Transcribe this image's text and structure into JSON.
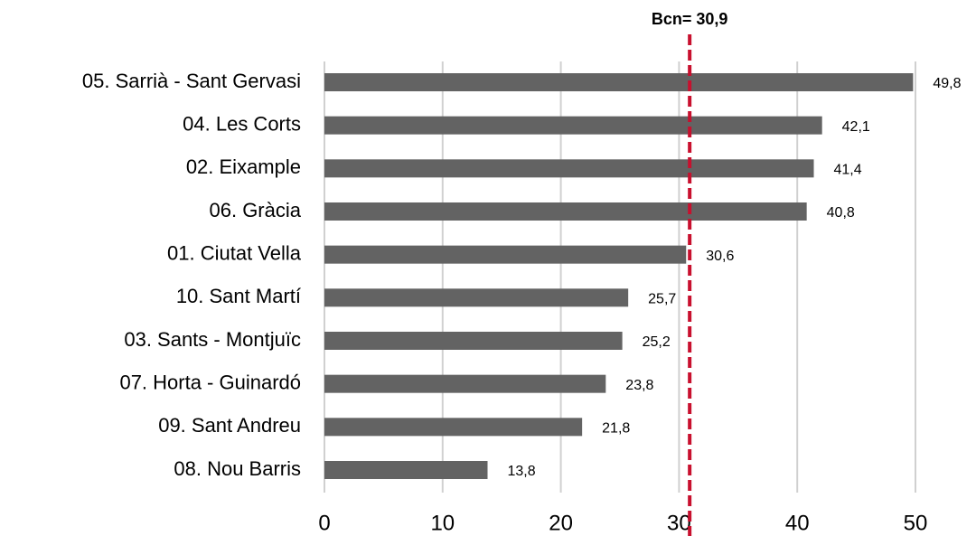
{
  "chart_data": {
    "type": "bar",
    "orientation": "horizontal",
    "categories": [
      "05. Sarrià - Sant Gervasi",
      "04. Les Corts",
      "02. Eixample",
      "06. Gràcia",
      "01. Ciutat Vella",
      "10. Sant Martí",
      "03. Sants - Montjuïc",
      "07. Horta - Guinardó",
      "09. Sant Andreu",
      "08. Nou Barris"
    ],
    "values": [
      49.8,
      42.1,
      41.4,
      40.8,
      30.6,
      25.7,
      25.2,
      23.8,
      21.8,
      13.8
    ],
    "value_labels": [
      "49,8",
      "42,1",
      "41,4",
      "40,8",
      "30,6",
      "25,7",
      "25,2",
      "23,8",
      "21,8",
      "13,8"
    ],
    "color": "#636363",
    "xlim": [
      0,
      50
    ],
    "xticks": [
      0,
      10,
      20,
      30,
      40,
      50
    ],
    "grid": true,
    "reference_line": {
      "value": 30.9,
      "label": "Bcn= 30,9",
      "color": "#c8102e"
    }
  }
}
